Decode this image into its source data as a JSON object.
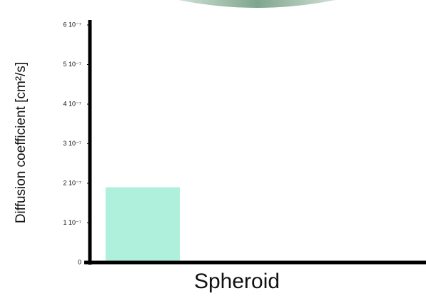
{
  "chart_data": {
    "type": "bar",
    "y_label": "Diffusion coefficient [cm²/s]",
    "categories": [
      "Spheroid"
    ],
    "values": [
      1.9e-07
    ],
    "color": "#aef0dc",
    "ylim": [
      0,
      6e-07
    ],
    "yticks": [
      0,
      {
        "value": 1e-07,
        "label": "1 10⁻⁷"
      },
      {
        "value": 2e-07,
        "label": "2 10⁻⁷"
      },
      {
        "value": 3e-07,
        "label": "3 10⁻⁷"
      },
      {
        "value": 4e-07,
        "label": "4 10⁻⁷"
      },
      {
        "value": 5e-07,
        "label": "5 10⁻⁷"
      },
      {
        "value": 6e-07,
        "label": "6 10⁻⁷"
      }
    ]
  }
}
